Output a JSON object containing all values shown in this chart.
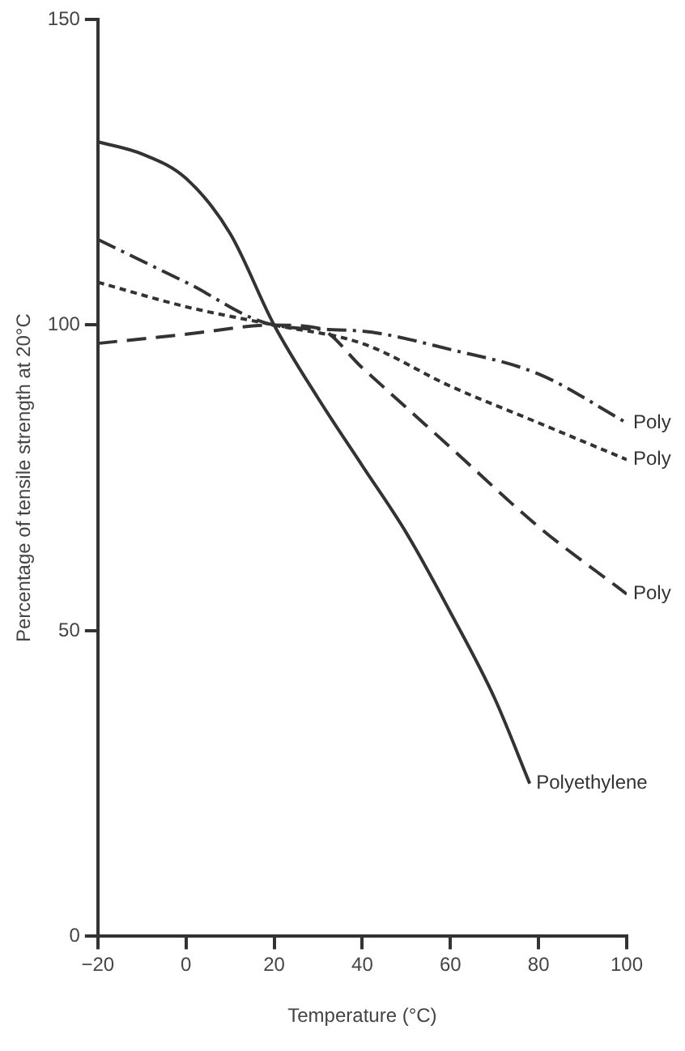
{
  "chart_data": {
    "type": "line",
    "xlabel": "Temperature (°C)",
    "ylabel": "Percentage of tensile strength at 20°C",
    "xlim": [
      -20,
      100
    ],
    "xticks": [
      -20,
      0,
      20,
      40,
      60,
      80,
      100
    ],
    "ylim": [
      0,
      150
    ],
    "yticks": [
      0,
      50,
      100,
      150
    ],
    "grid": false,
    "legend": false,
    "marker": "none",
    "series": [
      {
        "name": "Polyethylene",
        "color": "#333333",
        "line_style": "solid",
        "x": [
          -20,
          -10,
          0,
          10,
          20,
          30,
          40,
          50,
          60,
          70,
          78
        ],
        "values": [
          130,
          128,
          124,
          115,
          100,
          88,
          77,
          66,
          53,
          39,
          25
        ]
      },
      {
        "name": "Poly",
        "color": "#333333",
        "line_style": "dashdot",
        "x": [
          -20,
          0,
          20,
          40,
          60,
          80,
          100
        ],
        "values": [
          114,
          107,
          100,
          99,
          96,
          92,
          84
        ]
      },
      {
        "name": "Poly",
        "color": "#333333",
        "line_style": "dotted",
        "x": [
          -20,
          0,
          20,
          40,
          60,
          80,
          100
        ],
        "values": [
          107,
          103,
          100,
          97,
          90,
          84,
          78
        ]
      },
      {
        "name": "Poly",
        "color": "#333333",
        "line_style": "dashed",
        "x": [
          -20,
          0,
          20,
          30,
          40,
          60,
          80,
          100
        ],
        "values": [
          97,
          98.5,
          100,
          99.5,
          93,
          80,
          67,
          56
        ]
      }
    ]
  }
}
